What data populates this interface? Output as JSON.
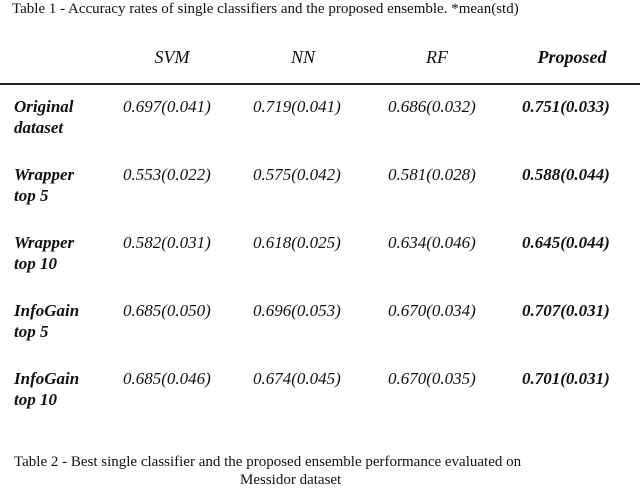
{
  "caption": "Table 1 - Accuracy rates of single classifiers and the proposed ensemble. *mean(std)",
  "table": {
    "header": [
      "SVM",
      "NN",
      "RF",
      "Proposed"
    ],
    "rows": [
      {
        "label": [
          "Original",
          "dataset"
        ],
        "cells": [
          "0.697(0.041)",
          "0.719(0.041)",
          "0.686(0.032)",
          "0.751(0.033)"
        ]
      },
      {
        "label": [
          "Wrapper",
          "top 5"
        ],
        "cells": [
          "0.553(0.022)",
          "0.575(0.042)",
          "0.581(0.028)",
          "0.588(0.044)"
        ]
      },
      {
        "label": [
          "Wrapper",
          "top 10"
        ],
        "cells": [
          "0.582(0.031)",
          "0.618(0.025)",
          "0.634(0.046)",
          "0.645(0.044)"
        ]
      },
      {
        "label": [
          "InfoGain",
          "top 5"
        ],
        "cells": [
          "0.685(0.050)",
          "0.696(0.053)",
          "0.670(0.034)",
          "0.707(0.031)"
        ]
      },
      {
        "label": [
          "InfoGain",
          "top 10"
        ],
        "cells": [
          "0.685(0.046)",
          "0.674(0.045)",
          "0.670(0.035)",
          "0.701(0.031)"
        ]
      }
    ]
  },
  "caption2": [
    "Table 2 - Best single classifier and the proposed ensemble performance evaluated on",
    "Messidor dataset"
  ]
}
